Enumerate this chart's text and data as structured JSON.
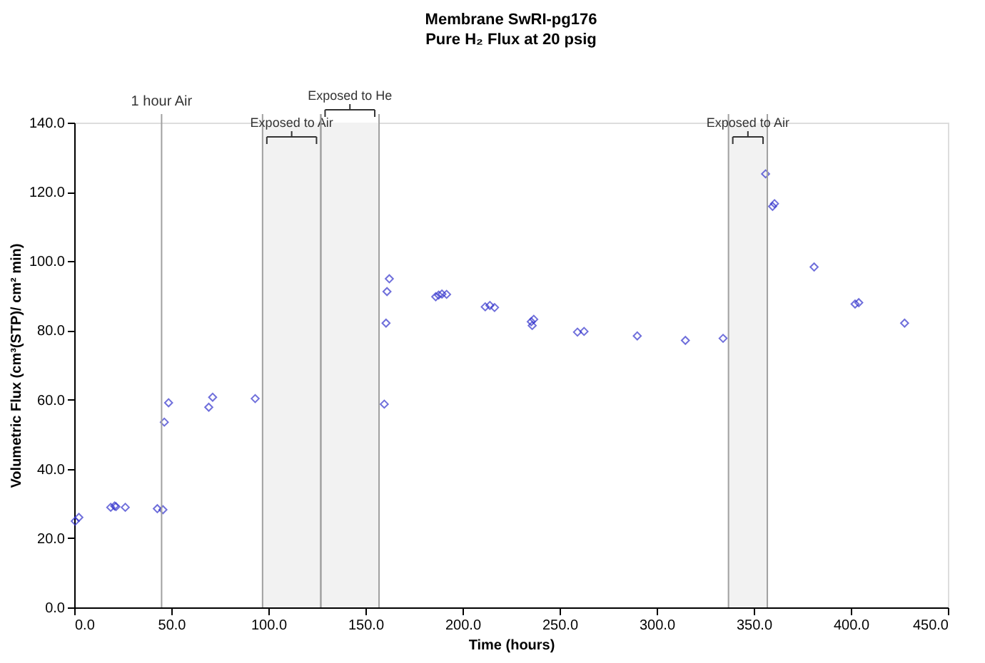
{
  "chart_data": {
    "type": "scatter",
    "title": "Membrane SwRI-pg176",
    "subtitle": "Pure H₂ Flux at 20 psig",
    "xlabel": "Time (hours)",
    "ylabel": "Volumetric Flux  (cm³(STP)/ cm² min)",
    "x": [
      0.5,
      2.4,
      18.8,
      20.8,
      21.5,
      26.3,
      42.8,
      45.7,
      46.4,
      48.6,
      69.3,
      71.3,
      93.2,
      159.7,
      160.6,
      161.1,
      162.3,
      186.2,
      187.7,
      189.4,
      191.8,
      211.7,
      214.1,
      216.5,
      235.4,
      236.7,
      235.9,
      259.2,
      262.6,
      290.0,
      314.8,
      334.2,
      356.1,
      359.7,
      360.7,
      381.1,
      402.2,
      404.1,
      427.7
    ],
    "series": [
      {
        "color": "#3333cc",
        "values": [
          24.9,
          26.0,
          28.9,
          29.3,
          29.1,
          28.9,
          28.5,
          28.2,
          53.5,
          59.1,
          57.8,
          60.7,
          60.3,
          58.7,
          82.1,
          91.2,
          94.9,
          89.7,
          90.2,
          90.5,
          90.4,
          86.8,
          87.2,
          86.6,
          82.5,
          83.2,
          81.4,
          79.5,
          79.7,
          78.4,
          77.1,
          77.7,
          125.2,
          115.8,
          116.6,
          98.3,
          87.6,
          88.0,
          82.1
        ]
      }
    ],
    "marker": "diamond",
    "grid": false,
    "xlim": [
      0,
      450
    ],
    "xticks": [
      {
        "value": 0,
        "label": "0.0"
      },
      {
        "value": 50,
        "label": "50.0"
      },
      {
        "value": 100,
        "label": "100.0"
      },
      {
        "value": 150,
        "label": "150.0"
      },
      {
        "value": 200,
        "label": "200.0"
      },
      {
        "value": 250,
        "label": "250.0"
      },
      {
        "value": 300,
        "label": "300.0"
      },
      {
        "value": 350,
        "label": "350.0"
      },
      {
        "value": 400,
        "label": "400.0"
      },
      {
        "value": 450,
        "label": "450.0"
      }
    ],
    "ylim": [
      0,
      140
    ],
    "yticks": [
      {
        "value": 0,
        "label": "0.0"
      },
      {
        "value": 20,
        "label": "20.0"
      },
      {
        "value": 40,
        "label": "40.0"
      },
      {
        "value": 60,
        "label": "60.0"
      },
      {
        "value": 80,
        "label": "80.0"
      },
      {
        "value": 100,
        "label": "100.0"
      },
      {
        "value": 120,
        "label": "120.0"
      },
      {
        "value": 140,
        "label": "140.0"
      }
    ],
    "ref_lines": [
      {
        "axis": "x",
        "value": 45,
        "label": "1 hour Air",
        "color": "#a0a0a0"
      }
    ],
    "bands": [
      {
        "axis": "x",
        "from": 97,
        "to": 127,
        "label": "Exposed to Air",
        "color": "#f2f2f2"
      },
      {
        "axis": "x",
        "from": 127,
        "to": 157,
        "label": "Exposed to He",
        "color": "#f2f2f2"
      },
      {
        "axis": "x",
        "from": 337,
        "to": 357,
        "label": "Exposed to Air",
        "color": "#f2f2f2"
      }
    ]
  }
}
